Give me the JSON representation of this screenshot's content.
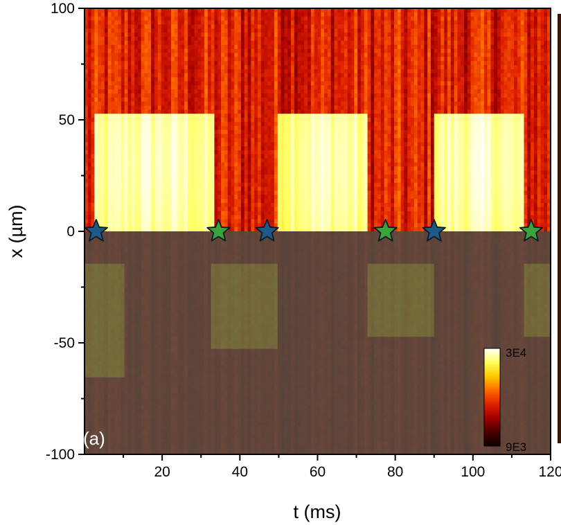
{
  "chart_data": {
    "type": "heatmap",
    "xlabel": "t (ms)",
    "ylabel": "x (µm)",
    "xlim": [
      0,
      120
    ],
    "ylim": [
      -100,
      100
    ],
    "x_ticks": [
      20,
      40,
      60,
      80,
      100,
      120
    ],
    "x_tick_labels": [
      "20",
      "40",
      "60",
      "80",
      "100",
      "120"
    ],
    "y_ticks": [
      100,
      50,
      0,
      -50,
      -100
    ],
    "y_tick_labels": [
      "100",
      "50",
      "0",
      "-50",
      "-100"
    ],
    "panel_label": "(a)",
    "colorbar": {
      "max_label": "3E4",
      "min_label": "9E3",
      "colors": [
        "#100000",
        "#4a0000",
        "#a00000",
        "#e02000",
        "#ff6a00",
        "#ffc800",
        "#ffff60",
        "#ffffff"
      ]
    },
    "overlay": {
      "y_range": [
        -100,
        0
      ],
      "color": "#505548",
      "opacity": 0.8
    },
    "bright_bands": [
      {
        "t_start": 3,
        "t_end": 33,
        "x_low": 0,
        "x_high": 52
      },
      {
        "t_start": 50,
        "t_end": 73,
        "x_low": 0,
        "x_high": 52
      },
      {
        "t_start": 90,
        "t_end": 113,
        "x_low": 0,
        "x_high": 52
      }
    ],
    "dim_bands": [
      {
        "t_start": 0,
        "t_end": 10,
        "x_low": -65,
        "x_high": -15
      },
      {
        "t_start": 33,
        "t_end": 50,
        "x_low": -52,
        "x_high": -15
      },
      {
        "t_start": 73,
        "t_end": 90,
        "x_low": -48,
        "x_high": -15
      },
      {
        "t_start": 113,
        "t_end": 120,
        "x_low": -48,
        "x_high": -15
      }
    ],
    "markers": [
      {
        "t": 3,
        "x": 0,
        "color": "#1d5a8a",
        "series": "blue"
      },
      {
        "t": 34.5,
        "x": 0,
        "color": "#3aa33a",
        "series": "green"
      },
      {
        "t": 47,
        "x": 0,
        "color": "#1d5a8a",
        "series": "blue"
      },
      {
        "t": 77.5,
        "x": 0,
        "color": "#3aa33a",
        "series": "green"
      },
      {
        "t": 90,
        "x": 0,
        "color": "#1d5a8a",
        "series": "blue"
      },
      {
        "t": 115,
        "x": 0,
        "color": "#3aa33a",
        "series": "green"
      }
    ]
  }
}
